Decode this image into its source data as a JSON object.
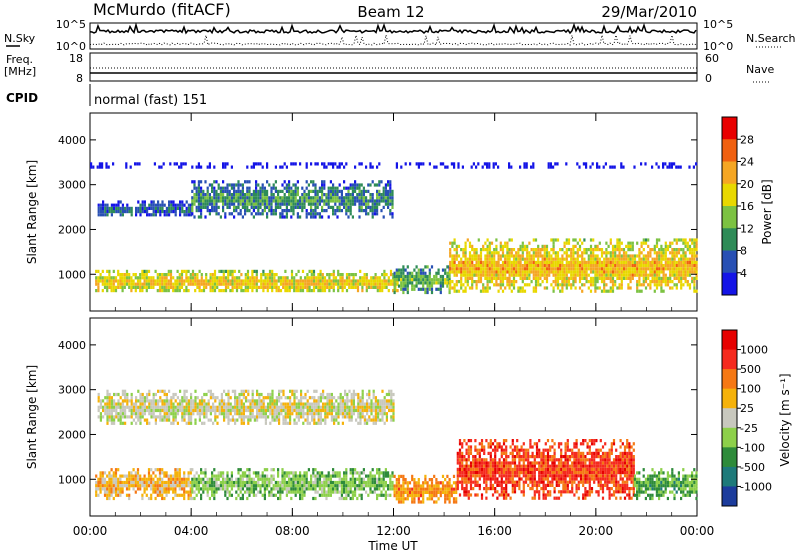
{
  "header": {
    "station": "McMurdo (fitACF)",
    "beam": "Beam 12",
    "date": "29/Mar/2010"
  },
  "summary": {
    "nsky_label": "N.Sky",
    "nsky_ticks": [
      "10^5",
      "10^0"
    ],
    "nsearch_label": "N.Search",
    "nsearch_ticks": [
      "10^5",
      "10^0"
    ],
    "freq_label": "Freq.",
    "freq_unit": "[MHz]",
    "freq_ticks": [
      "18",
      "8"
    ],
    "nave_label": "Nave",
    "nave_ticks": [
      "60",
      "0"
    ],
    "cpid_label": "CPID",
    "cpid_value": "normal (fast) 151"
  },
  "chart_data": [
    {
      "type": "heatmap",
      "name": "power",
      "ylabel": "Slant Range [km]",
      "ylim": [
        180,
        4600
      ],
      "yticks": [
        "1000",
        "2000",
        "3000",
        "4000"
      ],
      "ytick_values": [
        1000,
        2000,
        3000,
        4000
      ],
      "colorbar_label": "Power [dB]",
      "colorbar_ticks": [
        "4",
        "8",
        "12",
        "16",
        "20",
        "24",
        "28"
      ],
      "colorbar_colors": [
        "#1414e6",
        "#2850b4",
        "#2e8b57",
        "#7cc242",
        "#e8d800",
        "#f5a623",
        "#f06010",
        "#e80000"
      ],
      "regions": [
        {
          "t": [
            0.2,
            12.2
          ],
          "r": [
            600,
            1100
          ],
          "level": 0.78
        },
        {
          "t": [
            0.3,
            4.0
          ],
          "r": [
            2300,
            2650
          ],
          "level": 0.35
        },
        {
          "t": [
            4.0,
            12.0
          ],
          "r": [
            2300,
            3100
          ],
          "level": 0.45
        },
        {
          "t": [
            12.0,
            14.2
          ],
          "r": [
            600,
            1200
          ],
          "level": 0.55
        },
        {
          "t": [
            14.2,
            24.0
          ],
          "r": [
            600,
            1800
          ],
          "level": 0.82
        },
        {
          "t": [
            0.0,
            24.0
          ],
          "r": [
            3380,
            3500
          ],
          "level": 0.08
        }
      ]
    },
    {
      "type": "heatmap",
      "name": "velocity",
      "ylabel": "Slant Range [km]",
      "ylim": [
        180,
        4600
      ],
      "yticks": [
        "1000",
        "2000",
        "3000",
        "4000"
      ],
      "ytick_values": [
        1000,
        2000,
        3000,
        4000
      ],
      "colorbar_label": "Velocity [m s⁻¹]",
      "colorbar_ticks": [
        "1000",
        "500",
        "100",
        "25",
        "-25",
        "-100",
        "-500",
        "-1000"
      ],
      "colorbar_colors": [
        "#1c3c9c",
        "#1e7a7a",
        "#2e8b3a",
        "#8dd04a",
        "#c8c8be",
        "#f5b20a",
        "#f57814",
        "#f52a1e",
        "#e60000"
      ],
      "regions": [
        {
          "t": [
            0.2,
            4.0
          ],
          "r": [
            600,
            1250
          ],
          "level": 0.62
        },
        {
          "t": [
            4.0,
            12.0
          ],
          "r": [
            600,
            1250
          ],
          "level": 0.35
        },
        {
          "t": [
            0.3,
            12.0
          ],
          "r": [
            2250,
            3000
          ],
          "level": 0.5
        },
        {
          "t": [
            12.0,
            14.5
          ],
          "r": [
            500,
            1100
          ],
          "level": 0.7
        },
        {
          "t": [
            14.5,
            21.5
          ],
          "r": [
            600,
            1900
          ],
          "level": 0.85
        },
        {
          "t": [
            21.5,
            24.0
          ],
          "r": [
            600,
            1250
          ],
          "level": 0.3
        }
      ]
    }
  ],
  "xaxis": {
    "label": "Time UT",
    "ticks": [
      "00:00",
      "04:00",
      "08:00",
      "12:00",
      "16:00",
      "20:00",
      "00:00"
    ],
    "tick_values": [
      0,
      4,
      8,
      12,
      16,
      20,
      24
    ],
    "xlim": [
      0,
      24
    ]
  }
}
